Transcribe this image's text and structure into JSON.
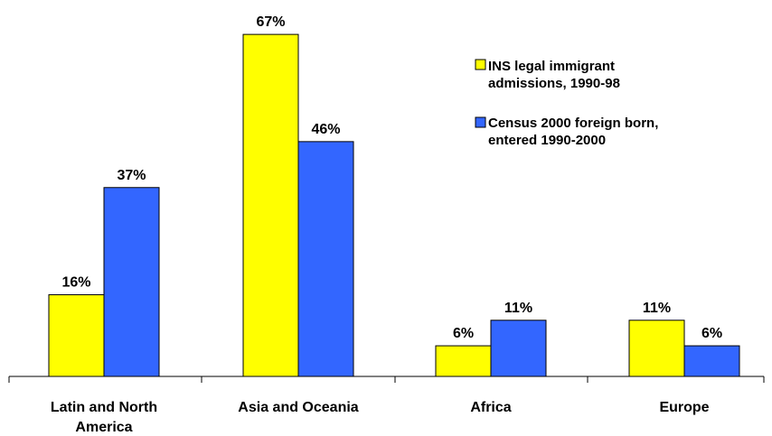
{
  "chart_data": {
    "type": "bar",
    "categories": [
      "Latin and North America",
      "Asia and Oceania",
      "Africa",
      "Europe"
    ],
    "category_label_lines": [
      [
        "Latin and North",
        "America"
      ],
      [
        "Asia and Oceania"
      ],
      [
        "Africa"
      ],
      [
        "Europe"
      ]
    ],
    "series": [
      {
        "name": "INS legal immigrant admissions, 1990-98",
        "legend_lines": [
          "INS legal immigrant",
          "admissions, 1990-98"
        ],
        "color": "#FFFF00",
        "values": [
          16,
          67,
          6,
          11
        ],
        "labels": [
          "16%",
          "67%",
          "6%",
          "11%"
        ]
      },
      {
        "name": "Census 2000 foreign born, entered 1990-2000",
        "legend_lines": [
          "Census 2000 foreign born,",
          "entered 1990-2000"
        ],
        "color": "#3366FF",
        "values": [
          37,
          46,
          11,
          6
        ],
        "labels": [
          "37%",
          "46%",
          "11%",
          "6%"
        ]
      }
    ],
    "ylim": [
      0,
      70
    ],
    "legend_position": "top-right",
    "grid": false
  }
}
